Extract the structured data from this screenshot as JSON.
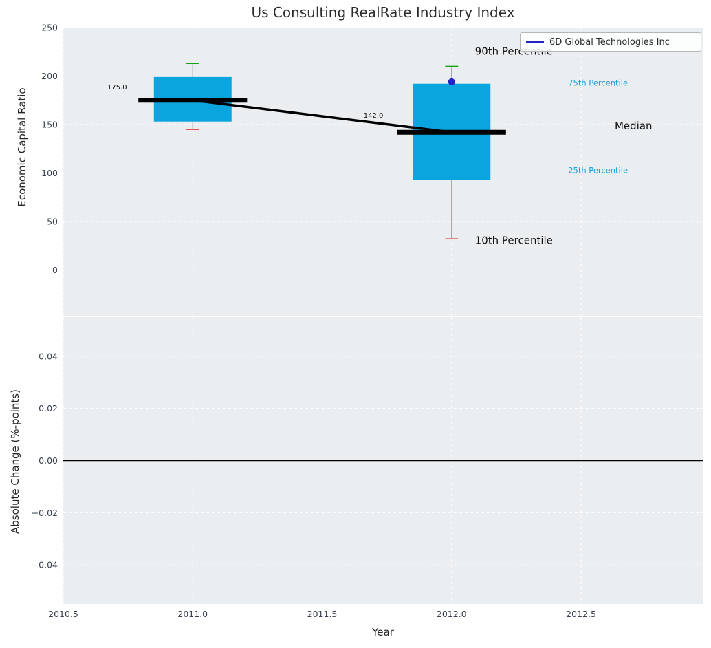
{
  "title": "Us Consulting RealRate Industry Index",
  "legend": {
    "label": "6D Global Technologies Inc",
    "line_color": "#2323bf"
  },
  "colors": {
    "panel_bg": "#eaeef0",
    "grid": "#ffffff",
    "box_fill": "#0aa5df",
    "median": "#000000",
    "trend": "#000000",
    "whisker": "#999999",
    "cap_top": "#17a317",
    "cap_bottom": "#dd2222",
    "company_dot": "#2222cc",
    "tick_label": "#39414f",
    "pct_label": "#1f9fd4",
    "zero_line": "#000000"
  },
  "chart_data": [
    {
      "type": "box",
      "panel": "top",
      "title": "Us Consulting RealRate Industry Index",
      "ylabel": "Economic Capital Ratio",
      "ylim": [
        -48,
        250
      ],
      "yticks": [
        0,
        50,
        100,
        150,
        200,
        250
      ],
      "xlim": [
        2010.5,
        2012.97
      ],
      "xticks": [
        2010.5,
        2011.0,
        2011.5,
        2012.0,
        2012.5
      ],
      "grid": true,
      "legend_position": "upper right",
      "box_width": 0.3,
      "median_width": 0.42,
      "series": [
        {
          "x": 2011,
          "p10": 145,
          "p25": 153,
          "median": 175,
          "p75": 199,
          "p90": 213
        },
        {
          "x": 2012,
          "p10": 32,
          "p25": 93,
          "median": 142,
          "p75": 192,
          "p90": 210
        }
      ],
      "median_trend": [
        {
          "x": 2011,
          "y": 175
        },
        {
          "x": 2012,
          "y": 142
        }
      ],
      "company_series": {
        "name": "6D Global Technologies Inc",
        "points": [
          {
            "x": 2012,
            "y": 194
          }
        ]
      },
      "annotations": [
        {
          "text": "175.0",
          "x": 2010.67,
          "y": 186,
          "size": 10,
          "color": "#111111"
        },
        {
          "text": "142.0",
          "x": 2011.66,
          "y": 157,
          "size": 10,
          "color": "#111111"
        },
        {
          "text": "90th Percentile",
          "x": 2012.09,
          "y": 222,
          "size": 15,
          "color": "#111111"
        },
        {
          "text": "75th Percentile",
          "x": 2012.45,
          "y": 190,
          "size": 11.5,
          "color": "#1f9fd4"
        },
        {
          "text": "Median",
          "x": 2012.63,
          "y": 145,
          "size": 15,
          "color": "#111111"
        },
        {
          "text": "25th Percentile",
          "x": 2012.45,
          "y": 100,
          "size": 11.5,
          "color": "#1f9fd4"
        },
        {
          "text": "10th Percentile",
          "x": 2012.09,
          "y": 27,
          "size": 15,
          "color": "#111111"
        }
      ]
    },
    {
      "type": "line",
      "panel": "bottom",
      "ylabel": "Absolute Change (%-points)",
      "xlabel": "Year",
      "ylim": [
        -0.055,
        0.055
      ],
      "yticks": [
        -0.04,
        -0.02,
        0.0,
        0.02,
        0.04
      ],
      "xlim": [
        2010.5,
        2012.97
      ],
      "xticks": [
        2010.5,
        2011.0,
        2011.5,
        2012.0,
        2012.5
      ],
      "grid": true,
      "zero_line": true
    }
  ]
}
